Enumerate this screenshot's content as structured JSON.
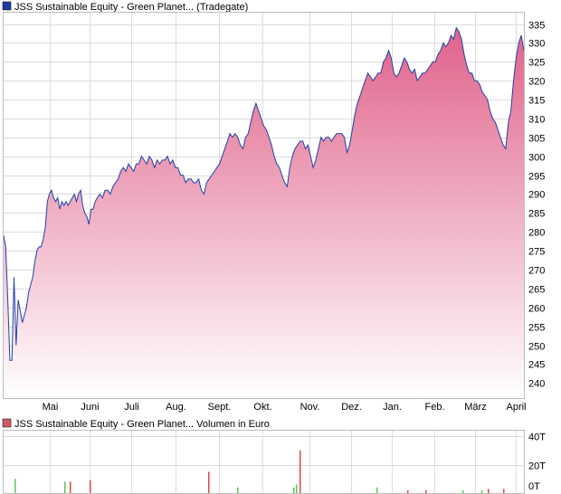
{
  "chart_data": [
    {
      "type": "area",
      "legend": "JSS Sustainable Equity - Green Planet... (Tradegate)",
      "legend_color": "#1f3f9f",
      "line_color": "#2040a8",
      "fill_top_color": "#e0628a",
      "fill_bottom_color": "#ffffff",
      "ylim": [
        236,
        338
      ],
      "y_ticks": [
        240,
        245,
        250,
        255,
        260,
        265,
        270,
        275,
        280,
        285,
        290,
        295,
        300,
        305,
        310,
        315,
        320,
        325,
        330,
        335
      ],
      "x_ticks": [
        {
          "label": "Mai",
          "pos": 0.088
        },
        {
          "label": "Juni",
          "pos": 0.166
        },
        {
          "label": "Juli",
          "pos": 0.245
        },
        {
          "label": "Aug.",
          "pos": 0.33
        },
        {
          "label": "Sept.",
          "pos": 0.414
        },
        {
          "label": "Okt.",
          "pos": 0.498
        },
        {
          "label": "Nov.",
          "pos": 0.588
        },
        {
          "label": "Dez.",
          "pos": 0.668
        },
        {
          "label": "Jan.",
          "pos": 0.746
        },
        {
          "label": "Feb.",
          "pos": 0.827
        },
        {
          "label": "März",
          "pos": 0.906
        },
        {
          "label": "April",
          "pos": 0.985
        }
      ],
      "series": [
        {
          "x": [
            0,
            0.004,
            0.008,
            0.012,
            0.016,
            0.02,
            0.024,
            0.028,
            0.032,
            0.036,
            0.04,
            0.044,
            0.048,
            0.052,
            0.056,
            0.06,
            0.064,
            0.068,
            0.072,
            0.076,
            0.08,
            0.084,
            0.088,
            0.092,
            0.096,
            0.1,
            0.104,
            0.108,
            0.112,
            0.116,
            0.12,
            0.124,
            0.128,
            0.132,
            0.136,
            0.14,
            0.144,
            0.148,
            0.152,
            0.156,
            0.16,
            0.164,
            0.168,
            0.172,
            0.176,
            0.18,
            0.185,
            0.19,
            0.195,
            0.2,
            0.205,
            0.21,
            0.215,
            0.22,
            0.225,
            0.23,
            0.235,
            0.24,
            0.245,
            0.25,
            0.255,
            0.26,
            0.265,
            0.27,
            0.275,
            0.28,
            0.285,
            0.29,
            0.295,
            0.3,
            0.305,
            0.31,
            0.315,
            0.32,
            0.325,
            0.33,
            0.335,
            0.34,
            0.345,
            0.35,
            0.355,
            0.36,
            0.365,
            0.37,
            0.375,
            0.38,
            0.385,
            0.39,
            0.395,
            0.4,
            0.405,
            0.41,
            0.415,
            0.42,
            0.425,
            0.43,
            0.435,
            0.44,
            0.445,
            0.45,
            0.455,
            0.46,
            0.465,
            0.47,
            0.475,
            0.48,
            0.485,
            0.49,
            0.495,
            0.5,
            0.505,
            0.51,
            0.515,
            0.52,
            0.525,
            0.53,
            0.535,
            0.54,
            0.545,
            0.55,
            0.555,
            0.56,
            0.565,
            0.57,
            0.575,
            0.58,
            0.585,
            0.59,
            0.595,
            0.6,
            0.605,
            0.61,
            0.615,
            0.62,
            0.625,
            0.63,
            0.635,
            0.64,
            0.645,
            0.65,
            0.655,
            0.66,
            0.665,
            0.67,
            0.675,
            0.68,
            0.685,
            0.69,
            0.695,
            0.7,
            0.705,
            0.71,
            0.715,
            0.72,
            0.725,
            0.73,
            0.735,
            0.74,
            0.745,
            0.75,
            0.755,
            0.76,
            0.765,
            0.77,
            0.775,
            0.78,
            0.785,
            0.79,
            0.795,
            0.8,
            0.805,
            0.81,
            0.815,
            0.82,
            0.825,
            0.83,
            0.835,
            0.84,
            0.845,
            0.85,
            0.855,
            0.86,
            0.865,
            0.87,
            0.875,
            0.88,
            0.885,
            0.89,
            0.895,
            0.9,
            0.905,
            0.91,
            0.915,
            0.92,
            0.925,
            0.93,
            0.935,
            0.94,
            0.945,
            0.95,
            0.955,
            0.96,
            0.965,
            0.97,
            0.975,
            0.98,
            0.985,
            0.99,
            0.995,
            1.0
          ],
          "values": [
            279,
            276,
            262,
            246,
            246,
            268,
            250,
            262,
            259,
            256,
            258,
            260,
            264,
            266,
            268,
            272,
            275,
            276,
            276,
            278,
            281,
            288,
            290,
            291,
            289,
            288,
            289,
            286,
            288,
            287,
            288,
            287,
            288,
            289,
            290,
            288,
            290,
            291,
            287,
            285,
            284,
            282,
            286,
            286,
            288,
            289,
            290,
            289,
            291,
            291,
            290,
            292,
            293,
            294,
            296,
            297,
            296,
            298,
            297,
            296,
            298,
            298,
            300,
            299,
            298,
            300,
            299,
            297,
            299,
            298,
            299,
            299,
            300,
            298,
            299,
            297,
            297,
            295,
            295,
            293,
            294,
            294,
            293,
            293,
            294,
            291,
            290,
            293,
            294,
            295,
            296,
            297,
            298,
            300,
            302,
            304,
            306,
            305,
            306,
            305,
            303,
            302,
            305,
            306,
            309,
            312,
            314,
            312,
            310,
            308,
            307,
            305,
            303,
            300,
            298,
            297,
            295,
            293,
            292,
            297,
            300,
            302,
            303,
            304,
            304,
            302,
            303,
            300,
            297,
            299,
            302,
            305,
            304,
            305,
            305,
            304,
            305,
            306,
            306,
            306,
            305,
            301,
            303,
            307,
            311,
            314,
            316,
            318,
            320,
            322,
            321,
            320,
            321,
            322,
            322,
            325,
            326,
            328,
            326,
            322,
            321,
            322,
            324,
            326,
            325,
            323,
            322,
            323,
            320,
            321,
            322,
            322,
            323,
            324,
            325,
            325,
            327,
            328,
            330,
            329,
            330,
            332,
            331,
            334,
            333,
            331,
            327,
            324,
            322,
            322,
            320,
            320,
            319,
            317,
            316,
            315,
            312,
            310,
            309,
            307,
            305,
            303,
            302,
            309,
            312,
            320,
            326,
            330,
            332,
            328
          ]
        }
      ]
    },
    {
      "type": "bar",
      "legend": "JSS Sustainable Equity - Green Planet... Volumen in Euro",
      "legend_color": "#cf5a6a",
      "ylim": [
        0,
        40
      ],
      "y_ticks": [
        {
          "value": 0,
          "label": "0T"
        },
        {
          "value": 20,
          "label": "20T"
        },
        {
          "value": 40,
          "label": "40T"
        }
      ],
      "bars": [
        {
          "x": 0.021,
          "value": 10,
          "color": "green"
        },
        {
          "x": 0.117,
          "value": 8,
          "color": "green"
        },
        {
          "x": 0.127,
          "value": 8,
          "color": "red"
        },
        {
          "x": 0.165,
          "value": 9,
          "color": "red"
        },
        {
          "x": 0.393,
          "value": 15,
          "color": "red"
        },
        {
          "x": 0.448,
          "value": 4,
          "color": "green"
        },
        {
          "x": 0.556,
          "value": 4,
          "color": "green"
        },
        {
          "x": 0.562,
          "value": 6,
          "color": "green"
        },
        {
          "x": 0.568,
          "value": 30,
          "color": "red"
        },
        {
          "x": 0.716,
          "value": 4,
          "color": "green"
        },
        {
          "x": 0.776,
          "value": 2,
          "color": "red"
        },
        {
          "x": 0.81,
          "value": 2,
          "color": "red"
        },
        {
          "x": 0.882,
          "value": 2,
          "color": "green"
        },
        {
          "x": 0.919,
          "value": 2,
          "color": "green"
        },
        {
          "x": 0.93,
          "value": 3,
          "color": "red"
        },
        {
          "x": 0.96,
          "value": 3,
          "color": "red"
        }
      ]
    }
  ]
}
